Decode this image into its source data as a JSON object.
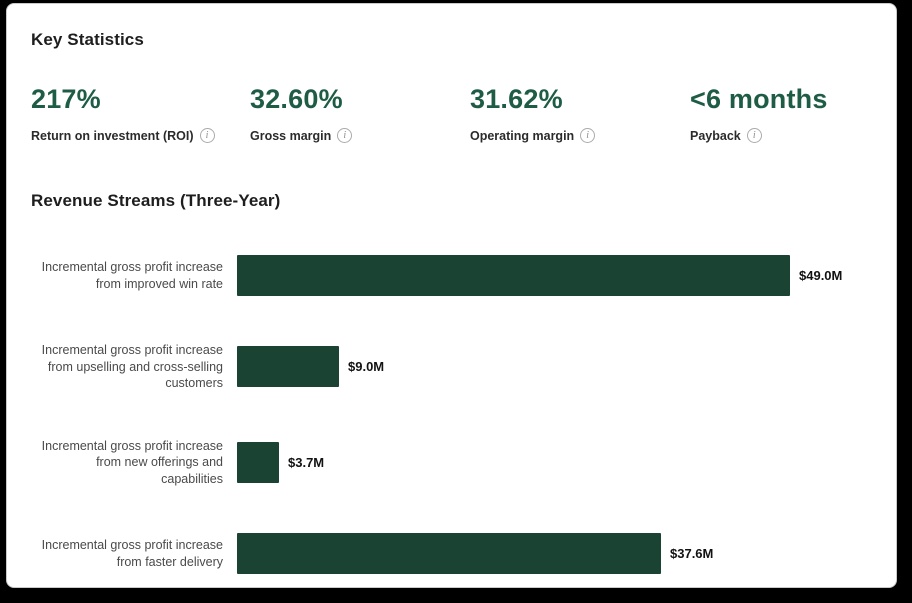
{
  "key_statistics": {
    "title": "Key Statistics",
    "stats": [
      {
        "value": "217%",
        "label": "Return on investment (ROI)"
      },
      {
        "value": "32.60%",
        "label": "Gross margin"
      },
      {
        "value": "31.62%",
        "label": "Operating margin"
      },
      {
        "value": "<6 months",
        "label": "Payback"
      }
    ]
  },
  "icons": {
    "info_glyph": "i"
  },
  "revenue_streams": {
    "title": "Revenue Streams (Three-Year)"
  },
  "chart_data": {
    "type": "bar",
    "orientation": "horizontal",
    "title": "Revenue Streams (Three-Year)",
    "unit": "USD millions",
    "categories": [
      "Incremental gross profit increase from improved win rate",
      "Incremental gross profit increase from upselling and cross-selling customers",
      "Incremental gross profit increase from new offerings and capabilities",
      "Incremental gross profit increase from faster delivery"
    ],
    "values": [
      49.0,
      9.0,
      3.7,
      37.6
    ],
    "value_labels": [
      "$49.0M",
      "$9.0M",
      "$3.7M",
      "$37.6M"
    ],
    "xlim": [
      0,
      49
    ],
    "grid": false,
    "legend": false,
    "bar_color": "#1b4334"
  },
  "colors": {
    "stat_green": "#1e5c45",
    "bar_green": "#1b4334",
    "text_dark": "#1e1e1e",
    "chart_label_gray": "#4a4a4a",
    "info_icon_gray": "#8f8f8f",
    "frame_black": "#000000",
    "card_bg": "#ffffff"
  }
}
